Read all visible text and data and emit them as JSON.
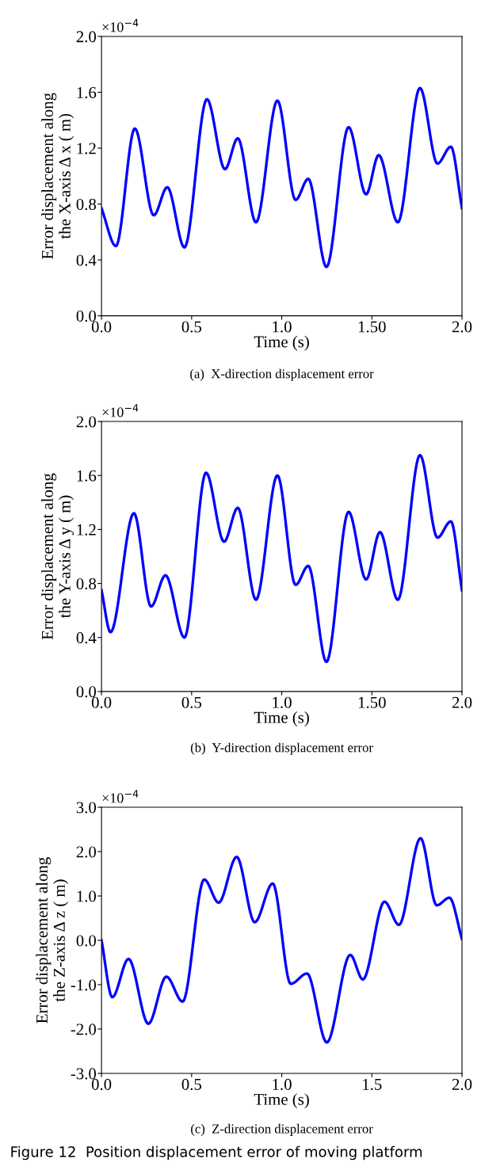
{
  "chart_data": [
    {
      "type": "line",
      "subtitle": "(a)  X-direction displacement error",
      "xlabel": "Time (s)",
      "ylabel": "Error displacement along\nthe X-axis Δ x ( m)",
      "annotations": [
        "×10$^{−4}$"
      ],
      "xlim": [
        0,
        2
      ],
      "xticks": [
        {
          "value": 0,
          "label": "0.0"
        },
        0.5,
        {
          "value": 1,
          "label": "1.0"
        },
        {
          "value": 1.5,
          "label": "1.50"
        },
        {
          "value": 2,
          "label": "2.0"
        }
      ],
      "ylim": [
        0,
        2
      ],
      "yticks": [
        {
          "value": 0,
          "label": "0.0"
        },
        0.4,
        0.8,
        1.2,
        1.6,
        {
          "value": 2,
          "label": "2.0"
        }
      ],
      "series": [
        {
          "color": "#0000ff",
          "x": [
            0,
            0.08,
            0.185,
            0.29,
            0.365,
            0.46,
            0.585,
            0.685,
            0.756,
            0.857,
            0.976,
            1.077,
            1.147,
            1.248,
            1.371,
            1.468,
            1.538,
            1.644,
            1.767,
            1.864,
            1.938,
            2.0
          ],
          "values": [
            0.77,
            0.5,
            1.34,
            0.72,
            0.92,
            0.49,
            1.55,
            1.05,
            1.27,
            0.67,
            1.54,
            0.83,
            0.98,
            0.35,
            1.35,
            0.87,
            1.15,
            0.67,
            1.63,
            1.09,
            1.21,
            0.77
          ]
        }
      ]
    },
    {
      "type": "line",
      "subtitle": "(b)  Y-direction displacement error",
      "xlabel": "Time (s)",
      "ylabel": "Error displacement along\nthe Y-axis Δ y ( m)",
      "annotations": [
        "×10$^{−4}$"
      ],
      "xlim": [
        0,
        2
      ],
      "xticks": [
        {
          "value": 0,
          "label": "0.0"
        },
        0.5,
        {
          "value": 1,
          "label": "1.0"
        },
        {
          "value": 1.5,
          "label": "1.50"
        },
        {
          "value": 2,
          "label": "2.0"
        }
      ],
      "ylim": [
        0,
        2
      ],
      "yticks": [
        {
          "value": 0,
          "label": "0.0"
        },
        0.4,
        0.8,
        1.2,
        1.6,
        {
          "value": 2,
          "label": "2.0"
        }
      ],
      "series": [
        {
          "color": "#0000ff",
          "x": [
            0,
            0.05,
            0.18,
            0.275,
            0.355,
            0.46,
            0.58,
            0.68,
            0.756,
            0.857,
            0.976,
            1.077,
            1.147,
            1.248,
            1.371,
            1.468,
            1.545,
            1.644,
            1.767,
            1.864,
            1.938,
            2.0
          ],
          "values": [
            0.75,
            0.44,
            1.32,
            0.63,
            0.86,
            0.4,
            1.62,
            1.11,
            1.36,
            0.68,
            1.6,
            0.79,
            0.93,
            0.22,
            1.33,
            0.83,
            1.18,
            0.68,
            1.75,
            1.14,
            1.26,
            0.75
          ]
        }
      ]
    },
    {
      "type": "line",
      "subtitle": "(c)  Z-direction displacement error",
      "xlabel": "Time (s)",
      "ylabel": "Error displacement along\nthe Z-axis Δ z ( m)",
      "annotations": [
        "×10$^{−4}$",
        "Figure 12  Position displacement error of moving platform"
      ],
      "xlim": [
        0,
        2
      ],
      "xticks": [
        {
          "value": 0,
          "label": "0.0"
        },
        {
          "value": 0.5,
          "label": "0.5"
        },
        {
          "value": 1,
          "label": "1.0"
        },
        {
          "value": 1.5,
          "label": "1.5"
        },
        {
          "value": 2,
          "label": "2.0"
        }
      ],
      "ylim": [
        -3,
        3
      ],
      "yticks": [
        {
          "value": -3,
          "label": "-3.0"
        },
        {
          "value": -2,
          "label": "-2.0"
        },
        {
          "value": -1,
          "label": "-1.0"
        },
        {
          "value": 0,
          "label": "0.0"
        },
        {
          "value": 1,
          "label": "1.0"
        },
        {
          "value": 2,
          "label": "2.0"
        },
        {
          "value": 3,
          "label": "3.0"
        }
      ],
      "series": [
        {
          "color": "#0000ff",
          "x": [
            0,
            0.06,
            0.15,
            0.26,
            0.36,
            0.45,
            0.57,
            0.65,
            0.75,
            0.85,
            0.95,
            1.05,
            1.14,
            1.25,
            1.38,
            1.45,
            1.57,
            1.65,
            1.77,
            1.86,
            1.93,
            2.0
          ],
          "values": [
            0.0,
            -1.28,
            -0.42,
            -1.88,
            -0.82,
            -1.38,
            1.37,
            0.85,
            1.88,
            0.41,
            1.28,
            -0.98,
            -0.75,
            -2.3,
            -0.33,
            -0.88,
            0.87,
            0.35,
            2.3,
            0.79,
            0.96,
            0.03
          ]
        }
      ]
    }
  ]
}
